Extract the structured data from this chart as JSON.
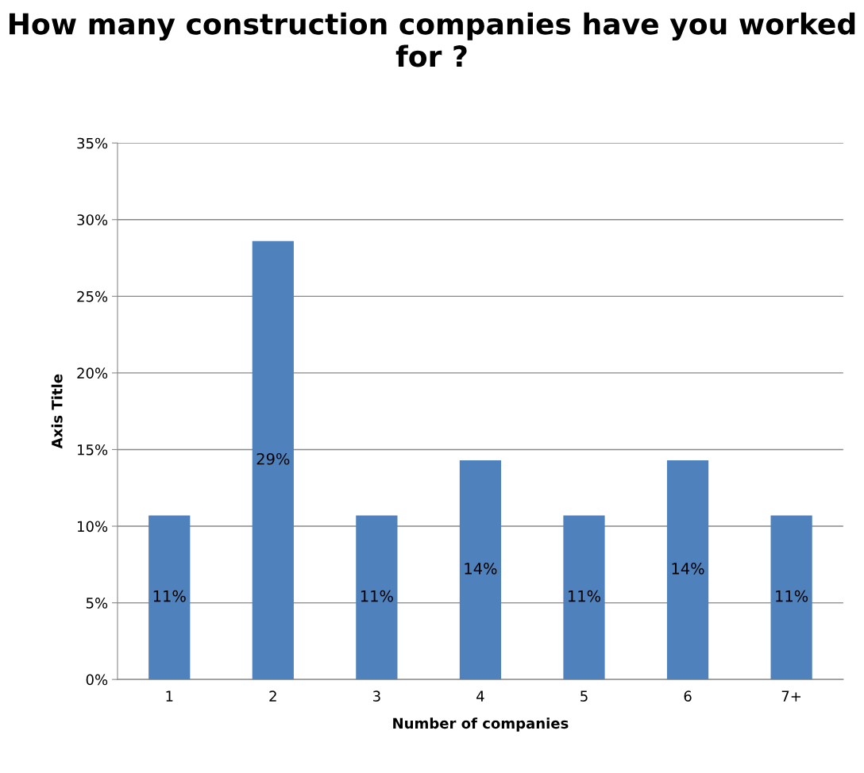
{
  "chart_data": {
    "type": "bar",
    "title": "How many construction companies have you worked for ?",
    "xlabel": "Number of companies",
    "ylabel": "Axis Title",
    "categories": [
      "1",
      "2",
      "3",
      "4",
      "5",
      "6",
      "7+"
    ],
    "values": [
      10.7,
      28.6,
      10.7,
      14.3,
      10.7,
      14.3,
      10.7
    ],
    "value_labels": [
      "11%",
      "29%",
      "11%",
      "14%",
      "11%",
      "14%",
      "11%"
    ],
    "color": "#4f81bd",
    "ylim": [
      0,
      35
    ],
    "yticks": [
      {
        "value": 0,
        "label": "0%"
      },
      {
        "value": 5,
        "label": "5%"
      },
      {
        "value": 10,
        "label": "10%"
      },
      {
        "value": 15,
        "label": "15%"
      },
      {
        "value": 20,
        "label": "20%"
      },
      {
        "value": 25,
        "label": "25%"
      },
      {
        "value": 30,
        "label": "30%"
      },
      {
        "value": 35,
        "label": "35%"
      }
    ],
    "grid": "y"
  }
}
